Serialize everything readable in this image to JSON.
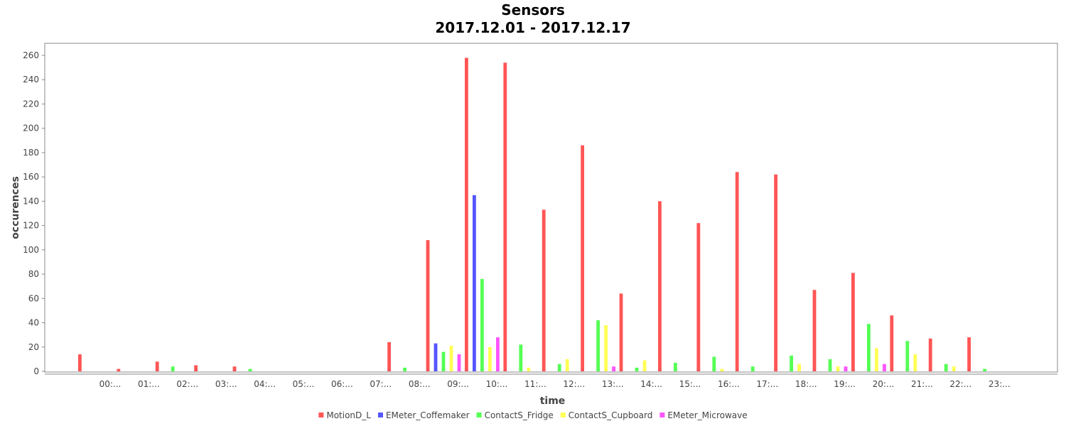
{
  "chart_data": {
    "type": "bar",
    "title": "Sensors",
    "subtitle": "2017.12.01 - 2017.12.17",
    "xlabel": "time",
    "ylabel": "occurences",
    "ylim": [
      0,
      270
    ],
    "yticks": [
      0,
      20,
      40,
      60,
      80,
      100,
      120,
      140,
      160,
      180,
      200,
      220,
      240,
      260
    ],
    "grid": false,
    "legend_position": "bottom",
    "categories": [
      "00:...",
      "01:...",
      "02:...",
      "03:...",
      "04:...",
      "05:...",
      "06:...",
      "07:...",
      "08:...",
      "09:...",
      "10:...",
      "11:...",
      "12:...",
      "13:...",
      "14:...",
      "15:...",
      "16:...",
      "17:...",
      "18:...",
      "19:...",
      "20:...",
      "21:...",
      "22:...",
      "23:..."
    ],
    "series": [
      {
        "name": "MotionD_L",
        "color": "#ff5555",
        "values": [
          14,
          2,
          8,
          5,
          4,
          0,
          0,
          0,
          24,
          108,
          258,
          254,
          133,
          186,
          64,
          140,
          122,
          164,
          162,
          67,
          81,
          46,
          27,
          28
        ]
      },
      {
        "name": "EMeter_Coffemaker",
        "color": "#5555ff",
        "values": [
          0,
          0,
          0,
          0,
          0,
          0,
          0,
          0,
          0,
          23,
          145,
          0,
          0,
          0,
          0,
          0,
          0,
          0,
          0,
          0,
          0,
          0,
          0,
          0
        ]
      },
      {
        "name": "ContactS_Fridge",
        "color": "#55ff55",
        "values": [
          0,
          0,
          4,
          0,
          2,
          0,
          0,
          0,
          3,
          16,
          76,
          22,
          6,
          42,
          3,
          7,
          12,
          4,
          13,
          10,
          39,
          25,
          6,
          2
        ]
      },
      {
        "name": "ContactS_Cupboard",
        "color": "#ffff55",
        "values": [
          0,
          0,
          0,
          0,
          0,
          0,
          0,
          0,
          0,
          21,
          20,
          3,
          10,
          38,
          9,
          0,
          2,
          0,
          6,
          4,
          19,
          14,
          4,
          0
        ]
      },
      {
        "name": "EMeter_Microwave",
        "color": "#ff55ff",
        "values": [
          0,
          0,
          0,
          0,
          0,
          0,
          0,
          0,
          0,
          14,
          28,
          0,
          0,
          4,
          0,
          0,
          0,
          0,
          0,
          4,
          6,
          0,
          0,
          0
        ]
      }
    ]
  }
}
